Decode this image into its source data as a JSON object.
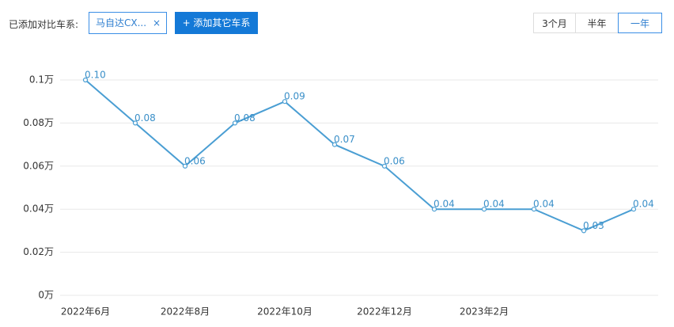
{
  "toolbar": {
    "compare_label": "已添加对比车系:",
    "chip": "马自达CX...",
    "chip_close": "×",
    "add_button": "+ 添加其它车系",
    "ranges": [
      "3个月",
      "半年",
      "一年"
    ]
  },
  "chart_data": {
    "type": "line",
    "categories": [
      "2022年6月",
      null,
      "2022年8月",
      null,
      "2022年10月",
      null,
      "2022年12月",
      null,
      "2023年2月",
      null,
      null,
      null
    ],
    "values": [
      0.1,
      0.08,
      0.06,
      0.08,
      0.09,
      0.07,
      0.06,
      0.04,
      0.04,
      0.04,
      0.03,
      0.04
    ],
    "value_labels": [
      "0.10",
      "0.08",
      "0.06",
      "0.08",
      "0.09",
      "0.07",
      "0.06",
      "0.04",
      "0.04",
      "0.04",
      "0.03",
      "0.04"
    ],
    "color": "#4a9ed3",
    "ylim": [
      0,
      0.1
    ],
    "yticks": [
      {
        "value": 0,
        "label": "0万"
      },
      {
        "value": 0.02,
        "label": "0.02万"
      },
      {
        "value": 0.04,
        "label": "0.04万"
      },
      {
        "value": 0.06,
        "label": "0.06万"
      },
      {
        "value": 0.08,
        "label": "0.08万"
      },
      {
        "value": 0.1,
        "label": "0.1万"
      }
    ],
    "grid": true
  }
}
